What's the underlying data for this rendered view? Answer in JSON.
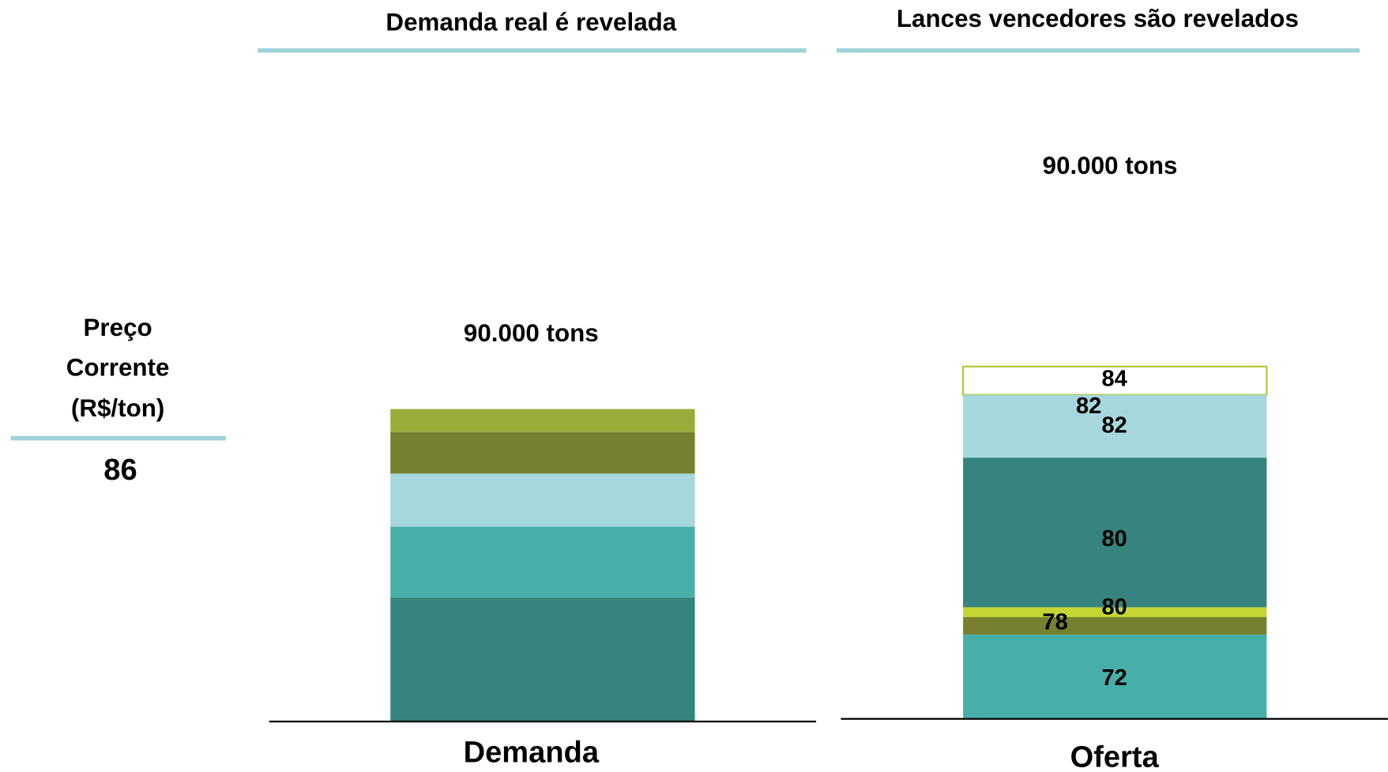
{
  "price_panel": {
    "label_lines": [
      "Preço",
      "Corrente",
      "(R$/ton)"
    ],
    "value": "86"
  },
  "panels": [
    {
      "title": "Demanda real é revelada",
      "total": "90.000 tons",
      "axis_label": "Demanda"
    },
    {
      "title": "Lances vencedores são revelados",
      "total": "90.000 tons",
      "axis_label": "Oferta",
      "labels": [
        "84",
        "82",
        "82",
        "80",
        "80",
        "78",
        "72"
      ]
    }
  ]
}
